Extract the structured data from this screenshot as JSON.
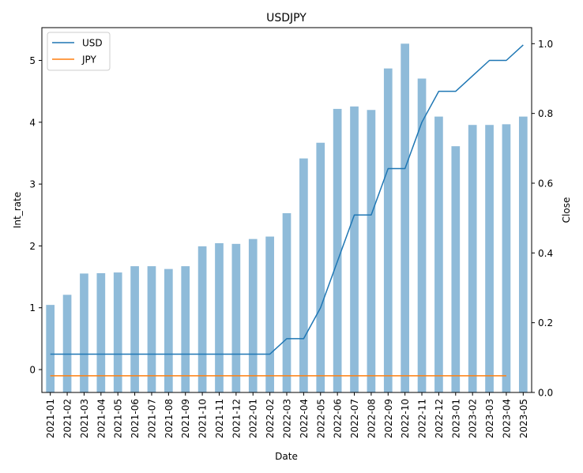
{
  "chart_data": {
    "type": "bar+line",
    "title": "USDJPY",
    "xlabel": "Date",
    "ylabel_left": "Int_rate",
    "ylabel_right": "Close",
    "categories": [
      "2021-01",
      "2021-02",
      "2021-03",
      "2021-04",
      "2021-05",
      "2021-06",
      "2021-07",
      "2021-08",
      "2021-09",
      "2021-10",
      "2021-11",
      "2021-12",
      "2022-01",
      "2022-02",
      "2022-03",
      "2022-04",
      "2022-05",
      "2022-06",
      "2022-07",
      "2022-08",
      "2022-09",
      "2022-10",
      "2022-11",
      "2022-12",
      "2023-01",
      "2023-02",
      "2023-03",
      "2023-04",
      "2023-05"
    ],
    "left_axis": {
      "ylim": [
        -0.37,
        5.53
      ],
      "ticks": [
        0,
        1,
        2,
        3,
        4,
        5
      ]
    },
    "right_axis": {
      "ylim": [
        0.0,
        1.046
      ],
      "ticks": [
        0.0,
        0.2,
        0.4,
        0.6,
        0.8,
        1.0
      ],
      "tick_labels": [
        "0.0",
        "0.2",
        "0.4",
        "0.6",
        "0.8",
        "1.0"
      ]
    },
    "bars": {
      "name": "Close",
      "axis": "right",
      "color": "#1f77b4",
      "opacity": 0.5,
      "values": [
        0.251,
        0.28,
        0.341,
        0.342,
        0.344,
        0.362,
        0.362,
        0.354,
        0.362,
        0.419,
        0.428,
        0.426,
        0.44,
        0.447,
        0.514,
        0.671,
        0.716,
        0.813,
        0.82,
        0.81,
        0.929,
        1.0,
        0.9,
        0.791,
        0.706,
        0.767,
        0.767,
        0.769,
        0.791
      ]
    },
    "series": [
      {
        "name": "USD",
        "axis": "left",
        "color": "#1f77b4",
        "values": [
          0.25,
          0.25,
          0.25,
          0.25,
          0.25,
          0.25,
          0.25,
          0.25,
          0.25,
          0.25,
          0.25,
          0.25,
          0.25,
          0.25,
          0.5,
          0.5,
          1.0,
          1.75,
          2.5,
          2.5,
          3.25,
          3.25,
          4.0,
          4.5,
          4.5,
          4.75,
          5.0,
          5.0,
          5.25
        ]
      },
      {
        "name": "JPY",
        "axis": "left",
        "color": "#ff7f0e",
        "values": [
          -0.1,
          -0.1,
          -0.1,
          -0.1,
          -0.1,
          -0.1,
          -0.1,
          -0.1,
          -0.1,
          -0.1,
          -0.1,
          -0.1,
          -0.1,
          -0.1,
          -0.1,
          -0.1,
          -0.1,
          -0.1,
          -0.1,
          -0.1,
          -0.1,
          -0.1,
          -0.1,
          -0.1,
          -0.1,
          -0.1,
          -0.1,
          -0.1,
          null
        ]
      }
    ],
    "legend": {
      "position": "top-left",
      "entries": [
        "USD",
        "JPY"
      ]
    },
    "grid": false
  }
}
